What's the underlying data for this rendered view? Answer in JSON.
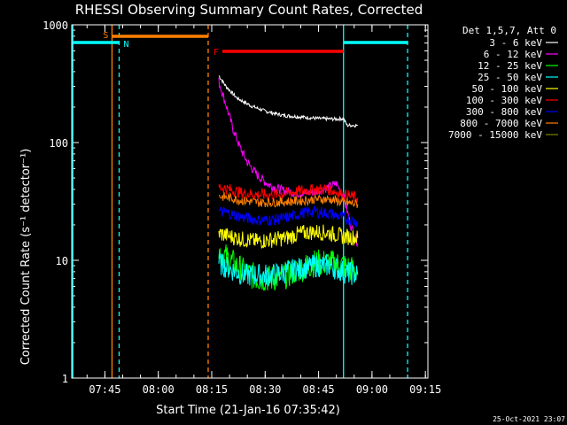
{
  "chart_data": {
    "type": "line",
    "title": "RHESSI Observing Summary Count Rates, Corrected",
    "xlabel": "Start Time (21-Jan-16 07:35:42)",
    "ylabel": "Corrected Count Rate (s⁻¹ detector⁻¹)",
    "yscale": "log",
    "xlim": [
      "07:35:42",
      "09:15:42"
    ],
    "ylim": [
      1,
      1000
    ],
    "x_ticks": [
      "07:45",
      "08:00",
      "08:15",
      "08:30",
      "08:45",
      "09:00",
      "09:15"
    ],
    "y_ticks": [
      "1",
      "10",
      "100",
      "1000"
    ],
    "legend_title": "Det 1,5,7, Att 0",
    "legend_placement": "right",
    "timestamp": "25-Oct-2021 23:07",
    "series": [
      {
        "name": "3 - 6 keV",
        "color": "#ffffff",
        "values": [
          [
            "08:17",
            370
          ],
          [
            "08:19",
            300
          ],
          [
            "08:22",
            240
          ],
          [
            "08:26",
            205
          ],
          [
            "08:30",
            185
          ],
          [
            "08:35",
            170
          ],
          [
            "08:40",
            165
          ],
          [
            "08:45",
            160
          ],
          [
            "08:50",
            158
          ],
          [
            "08:52",
            160
          ],
          [
            "08:53",
            140
          ],
          [
            "08:56",
            140
          ]
        ]
      },
      {
        "name": "6 - 12 keV",
        "color": "#ff00ff",
        "values": [
          [
            "08:17",
            330
          ],
          [
            "08:19",
            210
          ],
          [
            "08:21",
            130
          ],
          [
            "08:23",
            90
          ],
          [
            "08:25",
            68
          ],
          [
            "08:28",
            52
          ],
          [
            "08:31",
            44
          ],
          [
            "08:34",
            40
          ],
          [
            "08:37",
            38
          ],
          [
            "08:40",
            37
          ],
          [
            "08:44",
            38
          ],
          [
            "08:48",
            42
          ],
          [
            "08:50",
            45
          ],
          [
            "08:52",
            35
          ],
          [
            "08:54",
            20
          ],
          [
            "08:56",
            14
          ]
        ]
      },
      {
        "name": "12 - 25 keV",
        "color": "#00ff00",
        "values": [
          [
            "08:17",
            12
          ],
          [
            "08:20",
            10
          ],
          [
            "08:24",
            8
          ],
          [
            "08:28",
            7
          ],
          [
            "08:32",
            7
          ],
          [
            "08:36",
            7.5
          ],
          [
            "08:40",
            8.5
          ],
          [
            "08:44",
            9.5
          ],
          [
            "08:48",
            9.5
          ],
          [
            "08:52",
            9
          ],
          [
            "08:56",
            8
          ]
        ]
      },
      {
        "name": "25 - 50 keV",
        "color": "#00ffff",
        "values": [
          [
            "08:17",
            9.5
          ],
          [
            "08:20",
            8.5
          ],
          [
            "08:24",
            7.5
          ],
          [
            "08:28",
            7.5
          ],
          [
            "08:32",
            7.5
          ],
          [
            "08:36",
            8
          ],
          [
            "08:40",
            8.5
          ],
          [
            "08:44",
            9
          ],
          [
            "08:48",
            9
          ],
          [
            "08:52",
            8
          ],
          [
            "08:56",
            7.5
          ]
        ]
      },
      {
        "name": "50 - 100 keV",
        "color": "#ffff00",
        "values": [
          [
            "08:17",
            17
          ],
          [
            "08:20",
            16
          ],
          [
            "08:24",
            15
          ],
          [
            "08:28",
            14.5
          ],
          [
            "08:32",
            15
          ],
          [
            "08:36",
            15.5
          ],
          [
            "08:40",
            17
          ],
          [
            "08:44",
            17.5
          ],
          [
            "08:48",
            17
          ],
          [
            "08:52",
            16
          ],
          [
            "08:56",
            15.5
          ]
        ]
      },
      {
        "name": "100 - 300 keV",
        "color": "#ff0000",
        "values": [
          [
            "08:17",
            42
          ],
          [
            "08:20",
            40
          ],
          [
            "08:24",
            37
          ],
          [
            "08:28",
            36
          ],
          [
            "08:32",
            36
          ],
          [
            "08:36",
            37
          ],
          [
            "08:40",
            39
          ],
          [
            "08:44",
            40
          ],
          [
            "08:48",
            40
          ],
          [
            "08:52",
            36
          ],
          [
            "08:56",
            34
          ]
        ]
      },
      {
        "name": "300 - 800 keV",
        "color": "#0000ff",
        "values": [
          [
            "08:17",
            26
          ],
          [
            "08:20",
            25
          ],
          [
            "08:24",
            23
          ],
          [
            "08:28",
            22
          ],
          [
            "08:32",
            22
          ],
          [
            "08:36",
            23
          ],
          [
            "08:40",
            25
          ],
          [
            "08:44",
            26
          ],
          [
            "08:48",
            25
          ],
          [
            "08:52",
            23
          ],
          [
            "08:56",
            21
          ]
        ]
      },
      {
        "name": "800 - 7000 keV",
        "color": "#ff8000",
        "values": [
          [
            "08:17",
            35
          ],
          [
            "08:20",
            34
          ],
          [
            "08:24",
            32
          ],
          [
            "08:28",
            31
          ],
          [
            "08:32",
            31
          ],
          [
            "08:36",
            31.5
          ],
          [
            "08:40",
            32
          ],
          [
            "08:44",
            33
          ],
          [
            "08:48",
            33
          ],
          [
            "08:52",
            31
          ],
          [
            "08:56",
            30
          ]
        ]
      },
      {
        "name": "7000 - 15000 keV",
        "color": "#808000",
        "values": []
      }
    ],
    "annotations": {
      "attenuator_bars": [
        {
          "label": "S",
          "color": "#ff8000",
          "start": "07:47",
          "end": "08:14"
        },
        {
          "label": "F",
          "color": "#ff0000",
          "start": "08:18",
          "end": "08:52"
        }
      ],
      "night_bars": [
        {
          "label": "N",
          "color": "#00ffff",
          "start": "07:36",
          "end": "07:49"
        },
        {
          "label": "",
          "color": "#00ffff",
          "start": "08:52",
          "end": "09:10"
        }
      ],
      "vertical_lines": [
        {
          "time": "07:36",
          "color": "#00ffff",
          "style": "solid"
        },
        {
          "time": "07:47",
          "color": "#ff8000",
          "style": "solid"
        },
        {
          "time": "07:49",
          "color": "#00ffff",
          "style": "dashed"
        },
        {
          "time": "08:14",
          "color": "#ff8000",
          "style": "dashed"
        },
        {
          "time": "08:52",
          "color": "#00ffff",
          "style": "solid"
        },
        {
          "time": "09:10",
          "color": "#00ffff",
          "style": "dashed"
        }
      ]
    }
  }
}
